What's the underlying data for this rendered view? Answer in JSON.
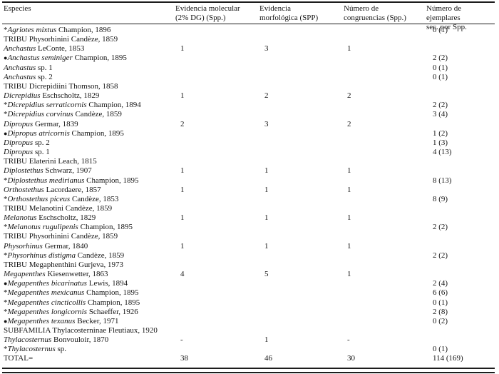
{
  "table": {
    "columns": [
      {
        "line1": "Especies",
        "line2": ""
      },
      {
        "line1": "Evidencia molecular",
        "line2": "(2% DG) (Spp.)"
      },
      {
        "line1": "Evidencia",
        "line2": "morfológica (SPP)"
      },
      {
        "line1": "Número de",
        "line2": "congruencias (Spp.)"
      },
      {
        "line1": "Número de ejemplares",
        "line2": "sec. por Spp."
      }
    ],
    "rows": [
      {
        "prefix": "*",
        "italic": "Agriotes mixtus",
        "roman": "Champion, 1896",
        "values": [
          "",
          "",
          "",
          "0 (1)"
        ]
      },
      {
        "prefix": "",
        "italic": "",
        "roman": "TRIBU Physorhinini Candèze, 1859",
        "values": [
          "",
          "",
          "",
          ""
        ]
      },
      {
        "prefix": "",
        "italic": "Anchastus",
        "roman": "LeConte, 1853",
        "values": [
          "1",
          "3",
          "1",
          ""
        ]
      },
      {
        "prefix": "●",
        "italic": "Anchastus seminiger",
        "roman": "Champion, 1895",
        "values": [
          "",
          "",
          "",
          "2 (2)"
        ]
      },
      {
        "prefix": "",
        "italic": "Anchastus",
        "roman": "sp. 1",
        "values": [
          "",
          "",
          "",
          "0 (1)"
        ]
      },
      {
        "prefix": "",
        "italic": "Anchastus",
        "roman": "sp. 2",
        "values": [
          "",
          "",
          "",
          "0 (1)"
        ]
      },
      {
        "prefix": "",
        "italic": "",
        "roman": "TRIBU Dicrepidiini Thomson, 1858",
        "values": [
          "",
          "",
          "",
          ""
        ]
      },
      {
        "prefix": "",
        "italic": "Dicrepidius",
        "roman": "Eschscholtz, 1829",
        "values": [
          "1",
          "2",
          "2",
          ""
        ]
      },
      {
        "prefix": "*",
        "italic": "Dicrepidius serraticornis",
        "roman": "Champion, 1894",
        "values": [
          "",
          "",
          "",
          "2 (2)"
        ]
      },
      {
        "prefix": "*",
        "italic": "Dicrepidius corvinus",
        "roman": "Candèze, 1859",
        "values": [
          "",
          "",
          "",
          "3 (4)"
        ]
      },
      {
        "prefix": "",
        "italic": "Dipropus",
        "roman": "Germar, 1839",
        "values": [
          "2",
          "3",
          "2",
          ""
        ]
      },
      {
        "prefix": "●",
        "italic": "Dipropus atricornis",
        "roman": "Champion, 1895",
        "values": [
          "",
          "",
          "",
          "1 (2)"
        ]
      },
      {
        "prefix": "",
        "italic": "Dipropus",
        "roman": "sp. 2",
        "values": [
          "",
          "",
          "",
          "1 (3)"
        ]
      },
      {
        "prefix": "",
        "italic": "Dipropus",
        "roman": "sp. 1",
        "values": [
          "",
          "",
          "",
          "4 (13)"
        ]
      },
      {
        "prefix": "",
        "italic": "",
        "roman": "TRIBU Elaterini Leach, 1815",
        "values": [
          "",
          "",
          "",
          ""
        ]
      },
      {
        "prefix": "",
        "italic": "Diplostethus",
        "roman": "Schwarz, 1907",
        "values": [
          "1",
          "1",
          "1",
          ""
        ]
      },
      {
        "prefix": "*",
        "italic": "Diplostethus medirianus",
        "roman": "Champion, 1895",
        "values": [
          "",
          "",
          "",
          "8 (13)"
        ]
      },
      {
        "prefix": "",
        "italic": "Orthostethus",
        "roman": "Lacordaere, 1857",
        "values": [
          "1",
          "1",
          "1",
          ""
        ]
      },
      {
        "prefix": "*",
        "italic": "Orthostethus piceus",
        "roman": "Candèze, 1853",
        "values": [
          "",
          "",
          "",
          "8 (9)"
        ]
      },
      {
        "prefix": "",
        "italic": "",
        "roman": "TRIBU Melanotini Candèze, 1859",
        "values": [
          "",
          "",
          "",
          ""
        ]
      },
      {
        "prefix": "",
        "italic": "Melanotus",
        "roman": "Eschscholtz, 1829",
        "values": [
          "1",
          "1",
          "1",
          ""
        ]
      },
      {
        "prefix": "*",
        "italic": "Melanotus rugulipenis",
        "roman": "Champion, 1895",
        "values": [
          "",
          "",
          "",
          "2 (2)"
        ]
      },
      {
        "prefix": "",
        "italic": "",
        "roman": "TRIBU Physorhinini Candèze, 1859",
        "values": [
          "",
          "",
          "",
          ""
        ]
      },
      {
        "prefix": "",
        "italic": "Physorhinus",
        "roman": "Germar, 1840",
        "values": [
          "1",
          "1",
          "1",
          ""
        ]
      },
      {
        "prefix": "*",
        "italic": "Physorhinus distigma",
        "roman": "Candèze, 1859",
        "values": [
          "",
          "",
          "",
          "2 (2)"
        ]
      },
      {
        "prefix": "",
        "italic": "",
        "roman": "TRIBU Megaphenthini Gurjeva, 1973",
        "values": [
          "",
          "",
          "",
          ""
        ]
      },
      {
        "prefix": "",
        "italic": "Megapenthes",
        "roman": "Kiesenwetter, 1863",
        "values": [
          "4",
          "5",
          "1",
          ""
        ]
      },
      {
        "prefix": "●",
        "italic": "Megapenthes bicarinatus",
        "roman": "Lewis, 1894",
        "values": [
          "",
          "",
          "",
          "2 (4)"
        ]
      },
      {
        "prefix": "*",
        "italic": "Megapenthes mexicanus",
        "roman": "Champion, 1895",
        "values": [
          "",
          "",
          "",
          "6 (6)"
        ]
      },
      {
        "prefix": "*",
        "italic": "Megapenthes cincticollis",
        "roman": "Champion, 1895",
        "values": [
          "",
          "",
          "",
          "0 (1)"
        ]
      },
      {
        "prefix": "*",
        "italic": "Megapenthes longicornis",
        "roman": "Schaeffer, 1926",
        "values": [
          "",
          "",
          "",
          "2 (8)"
        ]
      },
      {
        "prefix": "●",
        "italic": "Megapenthes texanus",
        "roman": "Becker, 1971",
        "values": [
          "",
          "",
          "",
          "0 (2)"
        ]
      },
      {
        "prefix": "",
        "italic": "",
        "roman": "SUBFAMILIA Thylacosterninae Fleutiaux, 1920",
        "values": [
          "",
          "",
          "",
          ""
        ]
      },
      {
        "prefix": "",
        "italic": "Thylacosternus",
        "roman": "Bonvouloir, 1870",
        "values": [
          "-",
          "1",
          "-",
          ""
        ]
      },
      {
        "prefix": "*",
        "italic": "Thylacosternus",
        "roman": "sp.",
        "values": [
          "",
          "",
          "",
          "0 (1)"
        ]
      },
      {
        "prefix": "",
        "italic": "",
        "roman": "TOTAL=",
        "values": [
          "38",
          "46",
          "30",
          "114 (169)"
        ]
      }
    ]
  }
}
